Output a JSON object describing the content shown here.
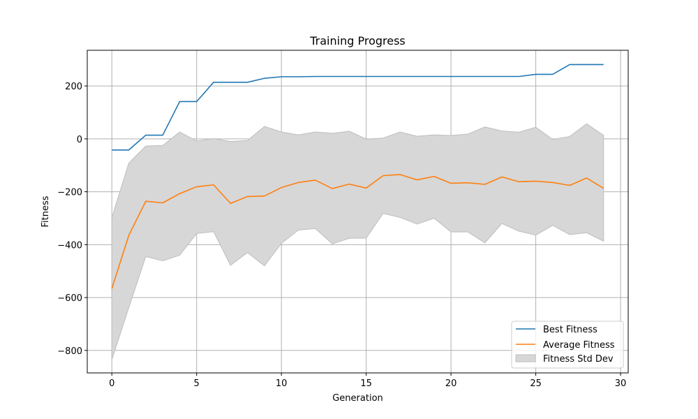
{
  "chart_data": {
    "type": "line",
    "title": "Training Progress",
    "xlabel": "Generation",
    "ylabel": "Fitness",
    "xlim": [
      -1.45,
      30.45
    ],
    "ylim": [
      -885,
      335
    ],
    "xticks": [
      0,
      5,
      10,
      15,
      20,
      25,
      30
    ],
    "yticks": [
      -800,
      -600,
      -400,
      -200,
      0,
      200
    ],
    "x_tick_labels": [
      "0",
      "5",
      "10",
      "15",
      "20",
      "25",
      "30"
    ],
    "y_tick_labels": [
      "−800",
      "−600",
      "−400",
      "−200",
      "0",
      "200"
    ],
    "grid": true,
    "legend_position": "lower right",
    "x": [
      0,
      1,
      2,
      3,
      4,
      5,
      6,
      7,
      8,
      9,
      10,
      11,
      12,
      13,
      14,
      15,
      16,
      17,
      18,
      19,
      20,
      21,
      22,
      23,
      24,
      25,
      26,
      27,
      28,
      29
    ],
    "series": [
      {
        "name": "Best Fitness",
        "color": "#1f77b4",
        "values": [
          -42,
          -42,
          14,
          14,
          141,
          141,
          214,
          214,
          214,
          229,
          235,
          235,
          236,
          236,
          236,
          236,
          236,
          236,
          236,
          236,
          236,
          236,
          236,
          236,
          236,
          244,
          244,
          281,
          281,
          281
        ]
      },
      {
        "name": "Average Fitness",
        "color": "#ff7f0e",
        "values": [
          -566,
          -365,
          -236,
          -242,
          -207,
          -181,
          -174,
          -244,
          -218,
          -216,
          -184,
          -165,
          -156,
          -188,
          -171,
          -186,
          -139,
          -135,
          -155,
          -142,
          -168,
          -166,
          -172,
          -144,
          -162,
          -160,
          -165,
          -176,
          -148,
          -187
        ]
      }
    ],
    "band": {
      "name": "Fitness Std Dev",
      "color": "#d7d7d7",
      "edge_color": "#bdbdbd",
      "upper": [
        -298,
        -92,
        -27,
        -25,
        26,
        -8,
        1,
        -10,
        -6,
        47,
        26,
        15,
        26,
        21,
        29,
        -1,
        3,
        26,
        10,
        15,
        13,
        18,
        45,
        30,
        25,
        44,
        -2,
        9,
        57,
        13
      ],
      "lower": [
        -835,
        -638,
        -445,
        -461,
        -440,
        -358,
        -351,
        -478,
        -430,
        -480,
        -395,
        -345,
        -339,
        -397,
        -376,
        -375,
        -282,
        -297,
        -322,
        -300,
        -352,
        -352,
        -393,
        -320,
        -349,
        -364,
        -327,
        -362,
        -355,
        -387
      ]
    }
  }
}
